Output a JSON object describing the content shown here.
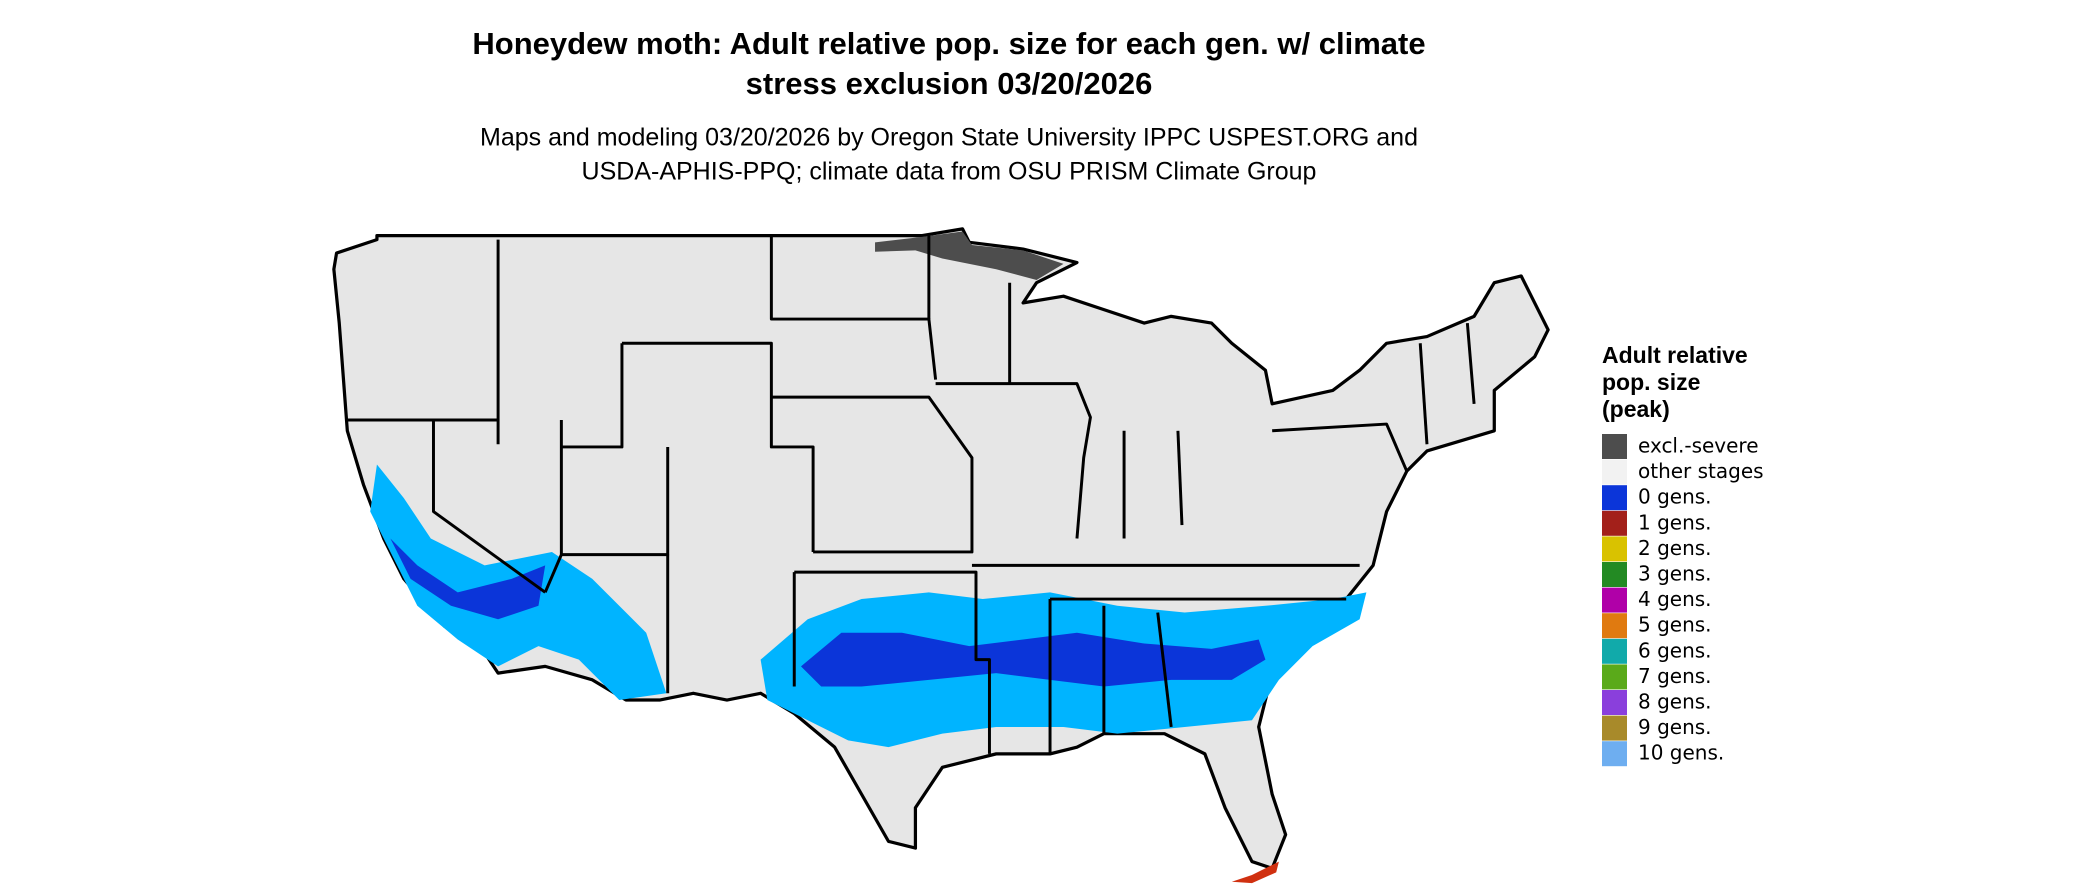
{
  "title": [
    "Honeydew moth: Adult relative pop. size for each gen. w/ climate",
    "stress exclusion 03/20/2026"
  ],
  "subtitle": [
    "Maps and modeling 03/20/2026 by Oregon State University IPPC USPEST.ORG and",
    "USDA-APHIS-PPQ; climate data from OSU PRISM Climate Group"
  ],
  "legend": {
    "title": [
      "Adult relative",
      "pop. size",
      "(peak)"
    ],
    "items": [
      {
        "label": "excl.-severe",
        "color": "#4d4d4d"
      },
      {
        "label": "other stages",
        "color": "#f2f2f2"
      },
      {
        "label": "0 gens.",
        "color": "#0b35d9"
      },
      {
        "label": "1 gens.",
        "color": "#a3201a"
      },
      {
        "label": "2 gens.",
        "color": "#d9c200"
      },
      {
        "label": "3 gens.",
        "color": "#238a23"
      },
      {
        "label": "4 gens.",
        "color": "#b000a8"
      },
      {
        "label": "5 gens.",
        "color": "#e07a10"
      },
      {
        "label": "6 gens.",
        "color": "#11aaaa"
      },
      {
        "label": "7 gens.",
        "color": "#5aaa1a"
      },
      {
        "label": "8 gens.",
        "color": "#8a3fdc"
      },
      {
        "label": "9 gens.",
        "color": "#a88a2a"
      },
      {
        "label": "10 gens.",
        "color": "#6eaef0"
      }
    ]
  }
}
